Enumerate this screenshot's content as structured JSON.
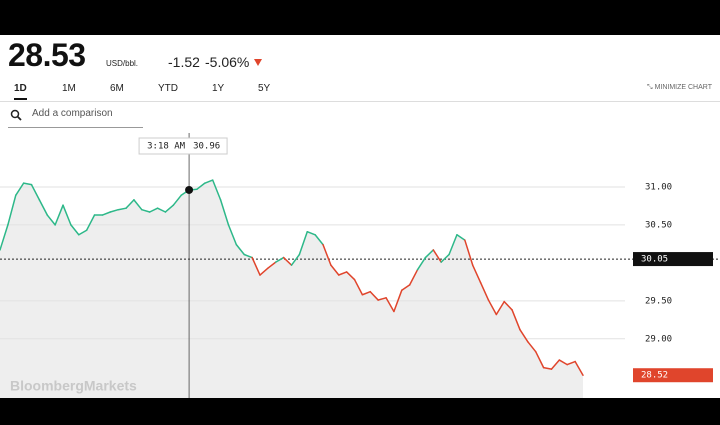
{
  "header": {
    "price": "28.53",
    "unit": "USD/bbl.",
    "change": "-1.52",
    "change_percent": "-5.06%",
    "tabs": [
      "1D",
      "1M",
      "6M",
      "YTD",
      "1Y",
      "5Y"
    ],
    "minimize": "MINIMIZE CHART",
    "search_placeholder": "Add a comparison"
  },
  "chart_data": {
    "type": "line",
    "watermark": "BloombergMarkets",
    "values": [
      30.17,
      30.5,
      30.89,
      31.05,
      31.03,
      30.83,
      30.63,
      30.5,
      30.76,
      30.5,
      30.37,
      30.43,
      30.63,
      30.63,
      30.67,
      30.7,
      30.72,
      30.83,
      30.7,
      30.67,
      30.72,
      30.67,
      30.76,
      30.89,
      30.96,
      30.97,
      31.05,
      31.09,
      30.83,
      30.5,
      30.24,
      30.11,
      30.07,
      29.84,
      29.93,
      30.01,
      30.07,
      29.97,
      30.11,
      30.41,
      30.37,
      30.24,
      29.97,
      29.84,
      29.88,
      29.78,
      29.58,
      29.62,
      29.51,
      29.54,
      29.36,
      29.64,
      29.71,
      29.91,
      30.07,
      30.17,
      30.01,
      30.11,
      30.37,
      30.3,
      29.97,
      29.74,
      29.51,
      29.32,
      29.49,
      29.38,
      29.12,
      28.96,
      28.83,
      28.62,
      28.6,
      28.72,
      28.66,
      28.7,
      28.52
    ],
    "above_color": "#2db889",
    "below_color": "#e0452c",
    "ylim": [
      28.22,
      31.75
    ],
    "yticks": [
      {
        "value": 31,
        "label": "31.00"
      },
      {
        "value": 30.5,
        "label": "30.50"
      },
      {
        "value": 29.5,
        "label": "29.50"
      },
      {
        "value": 29,
        "label": "29.00"
      }
    ],
    "grid": true,
    "reference_line": {
      "value": 30.05,
      "label": "30.05"
    },
    "last_value_label": "28.52",
    "crosshair": {
      "time": "3:18 AM",
      "value": 30.96
    }
  }
}
